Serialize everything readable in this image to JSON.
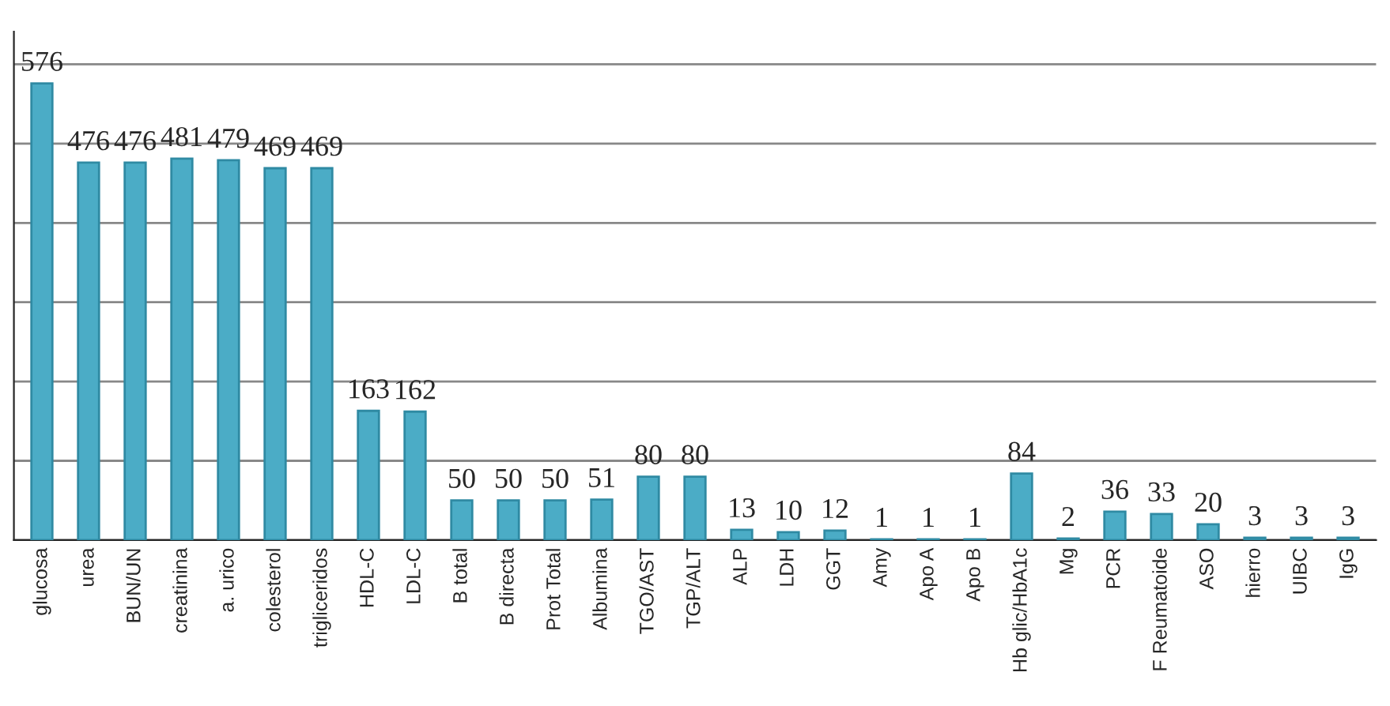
{
  "chart_data": {
    "type": "bar",
    "categories": [
      "glucosa",
      "urea",
      "BUN/UN",
      "creatinina",
      "a. urico",
      "colesterol",
      "trigliceridos",
      "HDL-C",
      "LDL-C",
      "B total",
      "B directa",
      "Prot Total",
      "Albumina",
      "TGO/AST",
      "TGP/ALT",
      "ALP",
      "LDH",
      "GGT",
      "Amy",
      "Apo A",
      "Apo B",
      "Hb glic/HbA1c",
      "Mg",
      "PCR",
      "F Reumatoide",
      "ASO",
      "hierro",
      "UIBC",
      "IgG"
    ],
    "values": [
      576,
      476,
      476,
      481,
      479,
      469,
      469,
      163,
      162,
      50,
      50,
      50,
      51,
      80,
      80,
      13,
      10,
      12,
      1,
      1,
      1,
      84,
      2,
      36,
      33,
      20,
      3,
      3,
      3
    ],
    "color": "#4bacc6",
    "data_labels": true,
    "grid": "y",
    "tick_labels": "x",
    "legend": false
  }
}
